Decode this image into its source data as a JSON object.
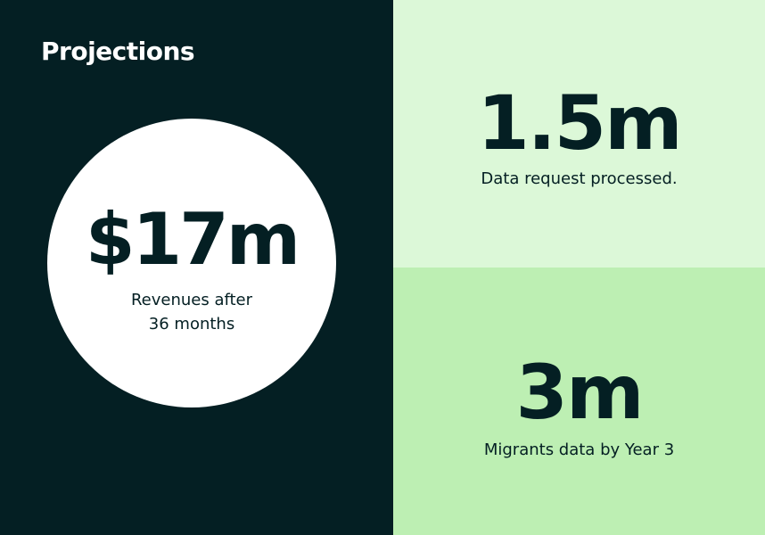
{
  "title": "Projections",
  "revenue": {
    "value": "$17m",
    "caption_line1": "Revenues after",
    "caption_line2": "36 months"
  },
  "data_requests": {
    "value": "1.5m",
    "label": "Data request processed."
  },
  "migrants": {
    "value": "3m",
    "label": "Migrants data by Year 3"
  },
  "colors": {
    "dark": "#041f23",
    "light_green": "#dcf8d8",
    "mid_green": "#bdefb3",
    "white": "#ffffff"
  }
}
